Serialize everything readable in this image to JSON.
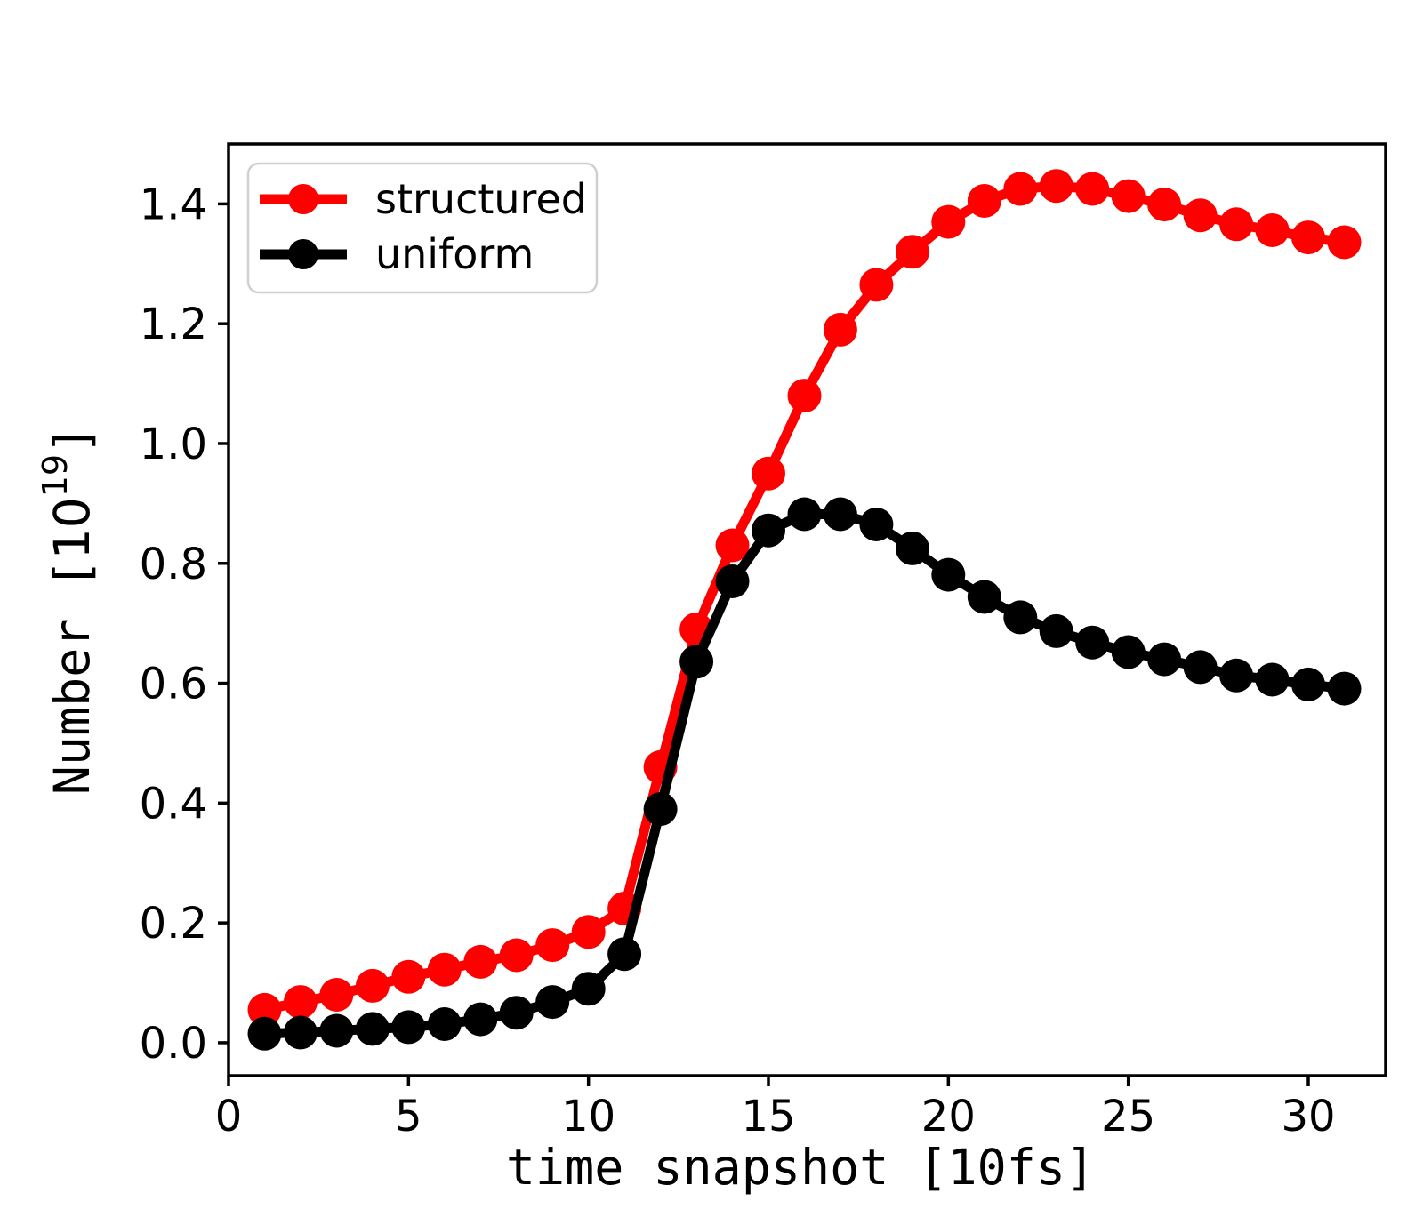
{
  "chart_data": {
    "type": "line",
    "title": "",
    "xlabel": "time snapshot [10fs]",
    "ylabel": "Number [10^19]",
    "ylabel_parts": {
      "prefix": "Number [",
      "base": "10",
      "exponent": "19",
      "suffix": "]"
    },
    "x": [
      1,
      2,
      3,
      4,
      5,
      6,
      7,
      8,
      9,
      10,
      11,
      12,
      13,
      14,
      15,
      16,
      17,
      18,
      19,
      20,
      21,
      22,
      23,
      24,
      25,
      26,
      27,
      28,
      29,
      30,
      31
    ],
    "series": [
      {
        "name": "structured",
        "color": "#ff0000",
        "values": [
          0.055,
          0.068,
          0.08,
          0.095,
          0.11,
          0.122,
          0.135,
          0.146,
          0.163,
          0.185,
          0.224,
          0.46,
          0.69,
          0.83,
          0.95,
          1.08,
          1.19,
          1.265,
          1.32,
          1.37,
          1.405,
          1.425,
          1.43,
          1.425,
          1.413,
          1.399,
          1.381,
          1.366,
          1.356,
          1.344,
          1.336
        ]
      },
      {
        "name": "uniform",
        "color": "#000000",
        "values": [
          0.015,
          0.017,
          0.02,
          0.023,
          0.026,
          0.031,
          0.039,
          0.05,
          0.068,
          0.09,
          0.148,
          0.39,
          0.636,
          0.77,
          0.855,
          0.882,
          0.882,
          0.865,
          0.825,
          0.781,
          0.744,
          0.71,
          0.687,
          0.668,
          0.652,
          0.64,
          0.627,
          0.613,
          0.606,
          0.598,
          0.591
        ]
      }
    ],
    "xlim": [
      0,
      32.15
    ],
    "ylim": [
      -0.055,
      1.5
    ],
    "xticks": [
      0,
      5,
      10,
      15,
      20,
      25,
      30
    ],
    "xtick_labels": [
      "0",
      "5",
      "10",
      "15",
      "20",
      "25",
      "30"
    ],
    "yticks": [
      0.0,
      0.2,
      0.4,
      0.6,
      0.8,
      1.0,
      1.2,
      1.4
    ],
    "ytick_labels": [
      "0.0",
      "0.2",
      "0.4",
      "0.6",
      "0.8",
      "1.0",
      "1.2",
      "1.4"
    ],
    "grid": false,
    "background": "#ffffff",
    "axis_color": "#000000",
    "legend": {
      "position": "upper-left",
      "border_color": "#d0d0d0",
      "entries": [
        {
          "label": "structured",
          "color": "#ff0000"
        },
        {
          "label": "uniform",
          "color": "#000000"
        }
      ]
    }
  }
}
